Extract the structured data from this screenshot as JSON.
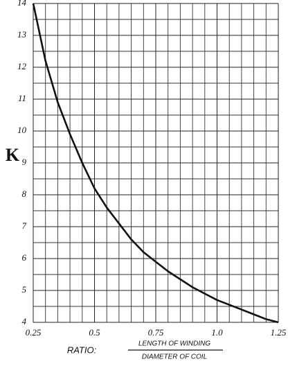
{
  "chart_data": {
    "type": "line",
    "y_label": "K",
    "x_label": "RATIO:",
    "x_label_numerator": "LENGTH OF WINDING",
    "x_label_denominator": "DIAMETER OF COIL",
    "x": [
      0.25,
      0.3,
      0.35,
      0.4,
      0.45,
      0.5,
      0.55,
      0.6,
      0.65,
      0.7,
      0.75,
      0.8,
      0.85,
      0.9,
      0.95,
      1.0,
      1.05,
      1.1,
      1.15,
      1.2,
      1.25
    ],
    "values": [
      14.0,
      12.2,
      10.9,
      9.9,
      9.0,
      8.2,
      7.6,
      7.1,
      6.6,
      6.2,
      5.9,
      5.6,
      5.35,
      5.1,
      4.9,
      4.7,
      4.55,
      4.4,
      4.25,
      4.1,
      4.0
    ],
    "color": "#111111",
    "xlim": [
      0.25,
      1.25
    ],
    "ylim": [
      4,
      14
    ],
    "xticks": [
      0.25,
      0.5,
      0.75,
      {
        "value": 1,
        "label": "1.0"
      },
      1.25
    ],
    "yticks": [
      4,
      5,
      6,
      7,
      8,
      9,
      10,
      11,
      12,
      13,
      14
    ],
    "grid": true
  }
}
